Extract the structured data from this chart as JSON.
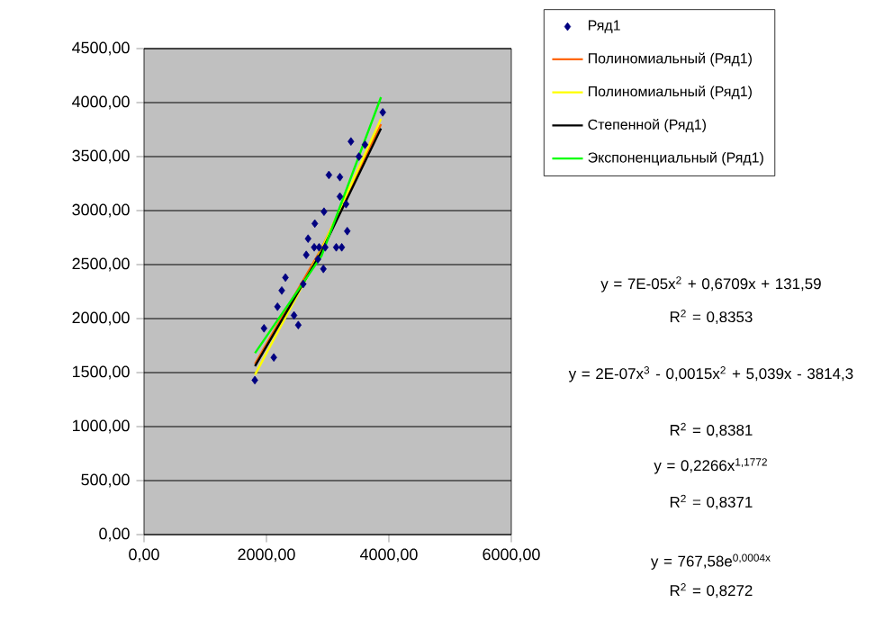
{
  "chart_data": {
    "type": "scatter",
    "xlim": [
      0,
      6000
    ],
    "ylim": [
      0,
      4500
    ],
    "xticks": [
      {
        "value": 0,
        "label": "0,00"
      },
      {
        "value": 2000,
        "label": "2000,00"
      },
      {
        "value": 4000,
        "label": "4000,00"
      },
      {
        "value": 6000,
        "label": "6000,00"
      }
    ],
    "yticks": [
      {
        "value": 0,
        "label": "0,00"
      },
      {
        "value": 500,
        "label": "500,00"
      },
      {
        "value": 1000,
        "label": "1000,00"
      },
      {
        "value": 1500,
        "label": "1500,00"
      },
      {
        "value": 2000,
        "label": "2000,00"
      },
      {
        "value": 2500,
        "label": "2500,00"
      },
      {
        "value": 3000,
        "label": "3000,00"
      },
      {
        "value": 3500,
        "label": "3500,00"
      },
      {
        "value": 4000,
        "label": "4000,00"
      },
      {
        "value": 4500,
        "label": "4500,00"
      }
    ],
    "grid": "y",
    "legend": "top right",
    "series": [
      {
        "name": "Ряд1",
        "marker": "diamond",
        "color": "#000080",
        "x": [
          1810,
          1960,
          2120,
          2180,
          2250,
          2310,
          2450,
          2520,
          2600,
          2650,
          2680,
          2790,
          2780,
          2840,
          2860,
          2930,
          2940,
          3020,
          2960,
          3140,
          3200,
          3200,
          3230,
          3300,
          3320,
          3380,
          3510,
          3610,
          3900
        ],
        "values": [
          1430,
          1910,
          1640,
          2110,
          2260,
          2380,
          2030,
          1940,
          2320,
          2590,
          2740,
          2880,
          2660,
          2550,
          2660,
          2460,
          2990,
          3330,
          2660,
          2660,
          3310,
          3130,
          2660,
          3060,
          2810,
          3640,
          3500,
          3610,
          3910
        ]
      },
      {
        "name": "Полиномиальный (Ряд1)",
        "type": "line",
        "color": "#ff6600",
        "x": [
          1813,
          2900,
          3871
        ],
        "values": [
          1580,
          2650,
          3800
        ]
      },
      {
        "name": "Полиномиальный (Ряд1)",
        "type": "line",
        "color": "#ffff00",
        "x": [
          1813,
          2900,
          3871
        ],
        "values": [
          1480,
          2640,
          3850
        ]
      },
      {
        "name": "Степенной (Ряд1)",
        "type": "line",
        "color": "#000000",
        "x": [
          1813,
          2900,
          3871
        ],
        "values": [
          1560,
          2620,
          3760
        ]
      },
      {
        "name": "Экспоненциальный (Ряд1)",
        "type": "line",
        "color": "#00ff00",
        "x": [
          1813,
          2900,
          3871
        ],
        "values": [
          1680,
          2580,
          4050
        ]
      }
    ],
    "annotations": [
      "y = 7E-05x$^{2}$ + 0,6709x + 131,59",
      "R$^{2}$ = 0,8353",
      "y = 2E-07x$^{3}$ - 0,0015x$^{2}$ + 5,039x - 3814,3",
      "R$^{2}$ = 0,8381",
      "y = 0,2266x$^{1,1772}$",
      "R$^{2}$ = 0,8371",
      "y = 767,58e$^{0,0004x}$",
      "R$^{2}$ = 0,8272"
    ]
  }
}
